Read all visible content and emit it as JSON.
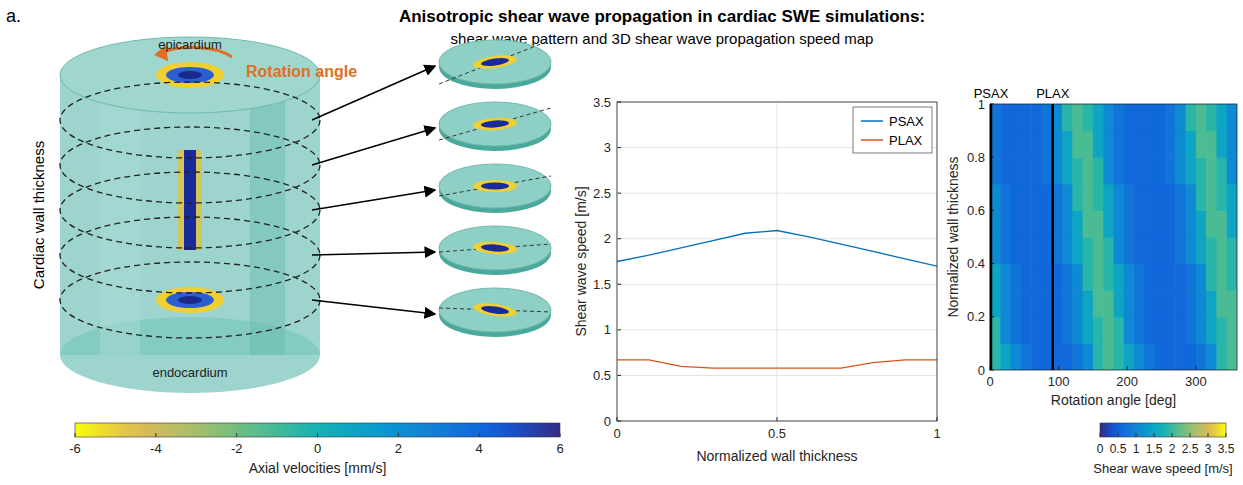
{
  "figure": {
    "label": "a.",
    "title": "Anisotropic shear wave propagation in cardiac SWE simulations:",
    "subtitle": "shear wave pattern and 3D shear wave propagation speed map"
  },
  "illustration": {
    "top_label": "epicardium",
    "bottom_label": "endocardium",
    "rotation_label": "Rotation angle",
    "axis_label": "Cardiac wall thickness",
    "colorbar": {
      "label": "Axial velocities [mm/s]",
      "range": [
        -6,
        6
      ],
      "ticks": [
        -6,
        -4,
        -2,
        0,
        2,
        4,
        6
      ]
    }
  },
  "chart_data": [
    {
      "type": "line",
      "x": [
        0,
        0.1,
        0.2,
        0.3,
        0.4,
        0.5,
        0.6,
        0.7,
        0.8,
        0.9,
        1
      ],
      "series": [
        {
          "name": "PSAX",
          "color": "#0072bd",
          "values": [
            1.75,
            1.82,
            1.9,
            1.98,
            2.06,
            2.09,
            2.02,
            1.94,
            1.86,
            1.78,
            1.7
          ]
        },
        {
          "name": "PLAX",
          "color": "#d95319",
          "values": [
            0.67,
            0.67,
            0.6,
            0.58,
            0.58,
            0.58,
            0.58,
            0.58,
            0.64,
            0.67,
            0.67
          ]
        }
      ],
      "xlim": [
        0,
        1
      ],
      "xticks": [
        0,
        0.5,
        1
      ],
      "ylim": [
        0,
        3.5
      ],
      "yticks": [
        0,
        0.5,
        1,
        1.5,
        2,
        2.5,
        3,
        3.5
      ],
      "grid": true,
      "legend": "northeast",
      "x_label": "Normalized wall thickness",
      "y_label": "Shear wave speed [m/s]"
    },
    {
      "type": "heatmap",
      "x_bins": [
        0,
        15,
        30,
        45,
        60,
        75,
        90,
        105,
        120,
        135,
        150,
        165,
        180,
        195,
        210,
        225,
        240,
        255,
        270,
        285,
        300,
        315,
        330,
        345,
        360
      ],
      "y_bins": [
        0,
        0.1,
        0.2,
        0.3,
        0.4,
        0.5,
        0.6,
        0.7,
        0.8,
        0.9,
        1
      ],
      "cells": [
        [
          1.88,
          1.5,
          1.05,
          0.75,
          0.6,
          0.6,
          0.6,
          0.6,
          0.75,
          1.05,
          1.88,
          2.1,
          1.88,
          1.5,
          1.05,
          0.75,
          0.6,
          0.6,
          0.6,
          0.6,
          0.75,
          1.05,
          1.88,
          2.1
        ],
        [
          1.88,
          1.05,
          0.75,
          0.6,
          0.6,
          0.6,
          0.6,
          0.75,
          1.05,
          1.5,
          1.88,
          2.1,
          1.88,
          1.05,
          0.75,
          0.6,
          0.6,
          0.6,
          0.6,
          0.75,
          1.05,
          1.5,
          1.88,
          2.1
        ],
        [
          1.5,
          1.05,
          0.75,
          0.6,
          0.6,
          0.6,
          0.6,
          0.75,
          1.05,
          1.5,
          2.1,
          2.1,
          1.5,
          1.05,
          0.75,
          0.6,
          0.6,
          0.6,
          0.6,
          0.75,
          1.05,
          1.5,
          2.1,
          2.1
        ],
        [
          1.5,
          1.05,
          0.75,
          0.6,
          0.6,
          0.6,
          0.6,
          0.75,
          1.05,
          1.88,
          2.1,
          1.88,
          1.5,
          1.05,
          0.75,
          0.6,
          0.6,
          0.6,
          0.6,
          0.75,
          1.05,
          1.88,
          2.1,
          1.88
        ],
        [
          1.05,
          0.75,
          0.6,
          0.6,
          0.6,
          0.6,
          0.75,
          1.05,
          1.5,
          1.88,
          2.1,
          1.88,
          1.05,
          0.75,
          0.6,
          0.6,
          0.6,
          0.6,
          0.75,
          1.05,
          1.5,
          1.88,
          2.1,
          1.88
        ],
        [
          1.05,
          0.75,
          0.6,
          0.6,
          0.6,
          0.6,
          0.75,
          1.05,
          1.5,
          2.1,
          2.1,
          1.5,
          1.05,
          0.75,
          0.6,
          0.6,
          0.6,
          0.6,
          0.75,
          1.05,
          1.5,
          2.1,
          2.1,
          1.5
        ],
        [
          1.05,
          0.75,
          0.6,
          0.6,
          0.6,
          0.6,
          0.75,
          1.05,
          1.88,
          2.1,
          1.88,
          1.5,
          1.05,
          0.75,
          0.6,
          0.6,
          0.6,
          0.6,
          0.75,
          1.05,
          1.88,
          2.1,
          1.88,
          1.5
        ],
        [
          0.75,
          0.6,
          0.6,
          0.6,
          0.6,
          0.75,
          1.05,
          1.5,
          1.88,
          2.1,
          1.88,
          1.05,
          0.75,
          0.6,
          0.6,
          0.6,
          0.6,
          0.75,
          1.05,
          1.5,
          1.88,
          2.1,
          1.88,
          1.05
        ],
        [
          0.75,
          0.6,
          0.6,
          0.6,
          0.6,
          0.75,
          1.05,
          1.5,
          2.1,
          2.1,
          1.5,
          1.05,
          0.75,
          0.6,
          0.6,
          0.6,
          0.6,
          0.75,
          1.05,
          1.5,
          2.1,
          2.1,
          1.5,
          1.05
        ],
        [
          0.75,
          0.6,
          0.6,
          0.6,
          0.6,
          0.75,
          1.05,
          1.88,
          2.1,
          1.88,
          1.5,
          1.05,
          0.75,
          0.6,
          0.6,
          0.6,
          0.6,
          0.75,
          1.05,
          1.88,
          2.1,
          1.88,
          1.5,
          1.05
        ]
      ],
      "xlim": [
        0,
        360
      ],
      "xticks": [
        0,
        100,
        200,
        300
      ],
      "ylim": [
        0,
        1
      ],
      "yticks": [
        0,
        0.2,
        0.4,
        0.6,
        0.8,
        1
      ],
      "x_label": "Rotation angle [deg]",
      "y_label": "Normalized wall thickness",
      "markers": [
        {
          "label": "PSAX",
          "x": 0
        },
        {
          "label": "PLAX",
          "x": 90
        }
      ],
      "colorbar": {
        "label": "Shear wave speed [m/s]",
        "range": [
          0,
          3.5
        ],
        "ticks": [
          0,
          0.5,
          1,
          1.5,
          2,
          2.5,
          3,
          3.5
        ]
      }
    }
  ]
}
